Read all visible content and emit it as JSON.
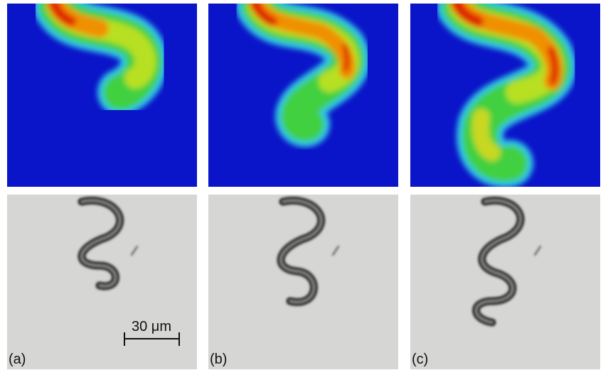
{
  "panels": [
    {
      "label": "(a)"
    },
    {
      "label": "(b)"
    },
    {
      "label": "(c)"
    }
  ],
  "scale_bar": {
    "label": "30 μm"
  }
}
